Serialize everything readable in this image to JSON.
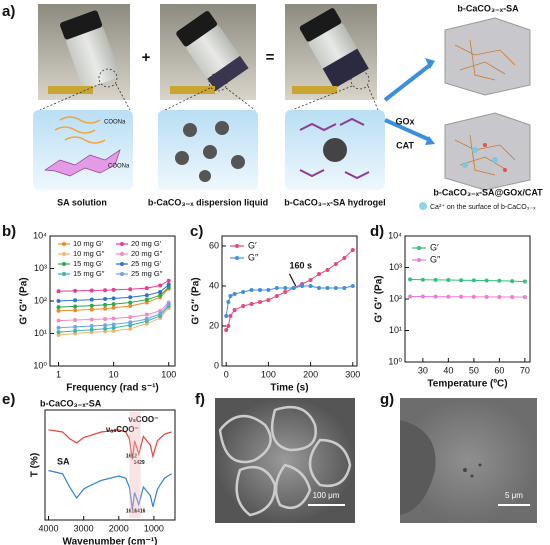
{
  "panel_labels": [
    "a)",
    "b)",
    "c)",
    "d)",
    "e)",
    "f)",
    "g)"
  ],
  "scheme": {
    "plus": "+",
    "equals": "=",
    "captions": [
      "SA solution",
      "b-CaCO₃₋ₓ dispersion liquid",
      "b-CaCO₃₋ₓ-SA hydrogel"
    ],
    "coona": [
      "COONa",
      "COONa"
    ],
    "product_top": "b-CaCO₃₋ₓ-SA",
    "product_bottom": "b-CaCO₃₋ₓ-SA@GOx/CAT",
    "enzymes": [
      "GOx",
      "CAT"
    ],
    "legend": "Ca²⁺ on the surface of b-CaCO₃₋ₓ"
  },
  "chart_data": [
    {
      "type": "line",
      "xlabel": "Frequency (rad s⁻¹)",
      "ylabel": "G′ G″ (Pa)",
      "xlog": true,
      "ylog": true,
      "xlim": [
        0.7,
        130
      ],
      "ylim": [
        1,
        10000
      ],
      "xticks": [
        1,
        10,
        100
      ],
      "yticks": [
        {
          "value": 1,
          "label": "10⁰"
        },
        {
          "value": 10,
          "label": "10¹"
        },
        {
          "value": 100,
          "label": "10²"
        },
        {
          "value": 1000,
          "label": "10³"
        },
        {
          "value": 10000,
          "label": "10⁴"
        }
      ],
      "x": [
        1,
        2,
        4,
        7,
        10,
        20,
        40,
        70,
        100
      ],
      "series": [
        {
          "name": "10 mg G′",
          "color": "#f08a24",
          "values": [
            50,
            52,
            55,
            58,
            62,
            70,
            90,
            130,
            240
          ]
        },
        {
          "name": "10 mg G″",
          "color": "#f5b56b",
          "values": [
            9,
            10,
            11,
            11.5,
            12,
            14,
            20,
            30,
            60
          ]
        },
        {
          "name": "15 mg G′",
          "color": "#2aa84a",
          "values": [
            65,
            68,
            72,
            76,
            80,
            90,
            110,
            150,
            260
          ]
        },
        {
          "name": "15 mg G″",
          "color": "#39b7a5",
          "values": [
            11,
            12,
            13,
            14,
            15,
            18,
            24,
            35,
            70
          ]
        },
        {
          "name": "20 mg G′",
          "color": "#e83e8c",
          "values": [
            200,
            205,
            210,
            215,
            220,
            230,
            250,
            300,
            420
          ]
        },
        {
          "name": "20 mg G″",
          "color": "#f08cc0",
          "values": [
            25,
            26,
            27,
            28,
            29,
            32,
            38,
            50,
            90
          ]
        },
        {
          "name": "25 mg G′",
          "color": "#2f6fd6",
          "values": [
            100,
            105,
            110,
            115,
            120,
            130,
            150,
            190,
            320
          ]
        },
        {
          "name": "25 mg G″",
          "color": "#6aa6ee",
          "values": [
            15,
            16,
            17,
            18,
            19,
            22,
            28,
            40,
            80
          ]
        }
      ]
    },
    {
      "type": "line",
      "xlabel": "Time (s)",
      "ylabel": "G′ G″ (Pa)",
      "xlim": [
        -10,
        310
      ],
      "ylim": [
        0,
        65
      ],
      "xticks": [
        0,
        100,
        200,
        300
      ],
      "yticks": [
        0,
        20,
        40,
        60
      ],
      "x": [
        0,
        5,
        10,
        20,
        40,
        60,
        80,
        100,
        120,
        140,
        160,
        180,
        200,
        220,
        240,
        260,
        280,
        300
      ],
      "series": [
        {
          "name": "G′",
          "color": "#e8477f",
          "values": [
            18,
            20,
            25,
            28,
            30,
            31,
            32,
            33,
            35,
            37,
            39,
            41,
            43,
            46,
            48,
            51,
            54,
            58
          ]
        },
        {
          "name": "G″",
          "color": "#3f8fe6",
          "values": [
            25,
            32,
            35,
            36,
            37,
            38,
            38,
            38,
            39,
            39,
            39,
            40,
            40,
            39,
            39,
            39,
            39,
            40
          ]
        }
      ],
      "annotations": [
        "160 s"
      ]
    },
    {
      "type": "line",
      "xlabel": "Temperature (ºC)",
      "ylabel": "G′ G″ (Pa)",
      "ylog": true,
      "xlim": [
        23,
        72
      ],
      "ylim": [
        1,
        10000
      ],
      "xticks": [
        30,
        40,
        50,
        60,
        70
      ],
      "yticks": [
        {
          "value": 1,
          "label": "10⁰"
        },
        {
          "value": 10,
          "label": "10¹"
        },
        {
          "value": 100,
          "label": "10²"
        },
        {
          "value": 1000,
          "label": "10³"
        },
        {
          "value": 10000,
          "label": "10⁴"
        }
      ],
      "x": [
        25,
        30,
        35,
        40,
        45,
        50,
        55,
        60,
        65,
        70
      ],
      "series": [
        {
          "name": "G′",
          "color": "#2ec27e",
          "values": [
            420,
            410,
            405,
            400,
            395,
            390,
            385,
            380,
            370,
            360
          ]
        },
        {
          "name": "G″",
          "color": "#f07ad8",
          "values": [
            120,
            120,
            119,
            118,
            118,
            117,
            117,
            116,
            116,
            115
          ]
        }
      ]
    },
    {
      "type": "line",
      "xlabel": "Wavenumber (cm⁻¹)",
      "ylabel": "T (%)",
      "xlim": [
        4100,
        400
      ],
      "ylim": [
        0,
        100
      ],
      "xticks": [
        4000,
        3000,
        2000,
        1000
      ],
      "x": [
        4000,
        3600,
        3400,
        3200,
        3000,
        2900,
        2500,
        2000,
        1800,
        1700,
        1612,
        1550,
        1429,
        1300,
        1100,
        1030,
        900,
        700,
        500
      ],
      "series": [
        {
          "name": "b-CaCO₃₋ₓ-SA",
          "color": "#e8413a",
          "values": [
            82,
            80,
            74,
            70,
            75,
            76,
            80,
            82,
            80,
            74,
            55,
            72,
            60,
            76,
            68,
            58,
            72,
            78,
            80
          ]
        },
        {
          "name": "SA",
          "color": "#2f7fe0",
          "values": [
            45,
            42,
            30,
            20,
            28,
            30,
            36,
            40,
            38,
            30,
            10,
            25,
            14,
            30,
            22,
            12,
            28,
            38,
            42
          ]
        }
      ],
      "annotations": [
        "νₐₛCOO⁻",
        "νₛCOO⁻",
        "1612",
        "1429",
        "1616",
        "1416"
      ]
    }
  ],
  "images": [
    {
      "scale_bar": "100 μm"
    },
    {
      "scale_bar": "5 μm"
    }
  ]
}
